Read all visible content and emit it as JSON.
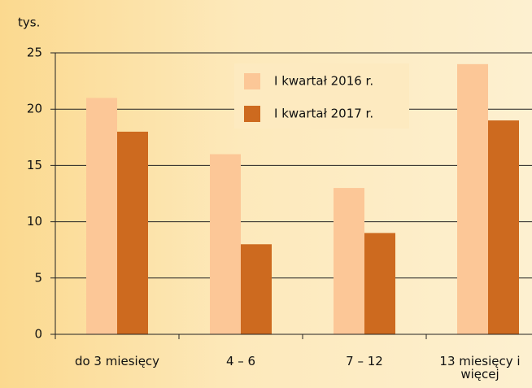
{
  "chart_data": {
    "type": "bar",
    "y_label": "tys.",
    "categories": [
      "do 3 miesięcy",
      "4 – 6",
      "7 – 12",
      "13 miesięcy i więcej"
    ],
    "series": [
      {
        "name": "I kwartał 2016 r.",
        "color": "#fcc797",
        "values": [
          21,
          16,
          13,
          24
        ]
      },
      {
        "name": "I kwartał 2017 r.",
        "color": "#cd6a1f",
        "values": [
          18,
          8,
          9,
          19
        ]
      }
    ],
    "ylim": [
      0,
      25
    ],
    "yticks": [
      0,
      5,
      10,
      15,
      20,
      25
    ],
    "grid": true
  }
}
